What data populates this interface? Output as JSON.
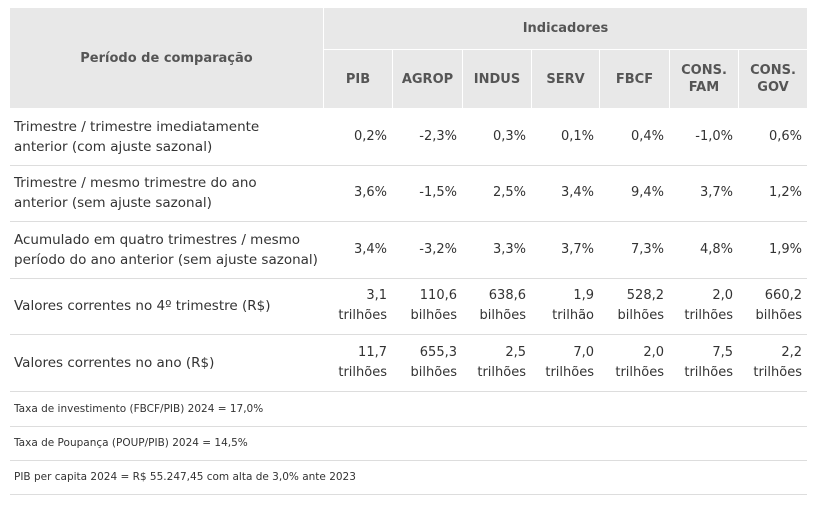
{
  "header": {
    "first": "Período de comparação",
    "group": "Indicadores",
    "columns": [
      [
        "PIB"
      ],
      [
        "AGROP"
      ],
      [
        "INDUS"
      ],
      [
        "SERV"
      ],
      [
        "FBCF"
      ],
      [
        "CONS.",
        "FAM"
      ],
      [
        "CONS.",
        "GOV"
      ]
    ]
  },
  "rows": [
    {
      "label": [
        "Trimestre / trimestre imediatamente",
        "anterior (com ajuste sazonal)"
      ],
      "cells": [
        [
          "0,2%"
        ],
        [
          "-2,3%"
        ],
        [
          "0,3%"
        ],
        [
          "0,1%"
        ],
        [
          "0,4%"
        ],
        [
          "-1,0%"
        ],
        [
          "0,6%"
        ]
      ]
    },
    {
      "label": [
        "Trimestre / mesmo trimestre do ano",
        "anterior (sem ajuste sazonal)"
      ],
      "cells": [
        [
          "3,6%"
        ],
        [
          "-1,5%"
        ],
        [
          "2,5%"
        ],
        [
          "3,4%"
        ],
        [
          "9,4%"
        ],
        [
          "3,7%"
        ],
        [
          "1,2%"
        ]
      ]
    },
    {
      "label": [
        "Acumulado em quatro trimestres / mesmo",
        "período do ano anterior (sem ajuste sazonal)"
      ],
      "cells": [
        [
          "3,4%"
        ],
        [
          "-3,2%"
        ],
        [
          "3,3%"
        ],
        [
          "3,7%"
        ],
        [
          "7,3%"
        ],
        [
          "4,8%"
        ],
        [
          "1,9%"
        ]
      ]
    },
    {
      "label": [
        "Valores correntes no 4º trimestre (R$)"
      ],
      "cells": [
        [
          "3,1",
          "trilhões"
        ],
        [
          "110,6",
          "bilhões"
        ],
        [
          "638,6",
          "bilhões"
        ],
        [
          "1,9",
          "trilhão"
        ],
        [
          "528,2",
          "bilhões"
        ],
        [
          "2,0",
          "trilhões"
        ],
        [
          "660,2",
          "bilhões"
        ]
      ]
    },
    {
      "label": [
        "Valores correntes no ano (R$)"
      ],
      "cells": [
        [
          "11,7",
          "trilhões"
        ],
        [
          "655,3",
          "bilhões"
        ],
        [
          "2,5",
          "trilhões"
        ],
        [
          "7,0",
          "trilhões"
        ],
        [
          "2,0",
          "trilhões"
        ],
        [
          "7,5",
          "trilhões"
        ],
        [
          "2,2",
          "trilhões"
        ]
      ]
    }
  ],
  "notes": [
    "Taxa de investimento (FBCF/PIB)  2024 = 17,0%",
    "Taxa de Poupança (POUP/PIB) 2024 = 14,5%",
    "PIB per capita 2024 = R$ 55.247,45 com alta de 3,0% ante 2023"
  ]
}
